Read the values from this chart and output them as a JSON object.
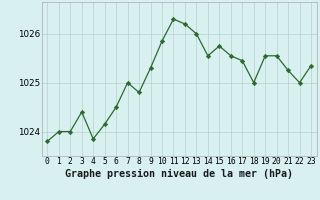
{
  "x": [
    0,
    1,
    2,
    3,
    4,
    5,
    6,
    7,
    8,
    9,
    10,
    11,
    12,
    13,
    14,
    15,
    16,
    17,
    18,
    19,
    20,
    21,
    22,
    23
  ],
  "y": [
    1023.8,
    1024.0,
    1024.0,
    1024.4,
    1023.85,
    1024.15,
    1024.5,
    1025.0,
    1024.8,
    1025.3,
    1025.85,
    1026.3,
    1026.2,
    1026.0,
    1025.55,
    1025.75,
    1025.55,
    1025.45,
    1025.0,
    1025.55,
    1025.55,
    1025.25,
    1025.0,
    1025.35
  ],
  "line_color": "#2d6a2d",
  "marker": "D",
  "marker_size": 2.2,
  "bg_color": "#d8f0f0",
  "grid_color": "#b8d0d0",
  "title": "Graphe pression niveau de la mer (hPa)",
  "yticks": [
    1024,
    1025,
    1026
  ],
  "ylim": [
    1023.5,
    1026.65
  ],
  "xlim": [
    -0.5,
    23.5
  ],
  "tick_fontsize": 5.8,
  "title_fontsize": 7.2
}
